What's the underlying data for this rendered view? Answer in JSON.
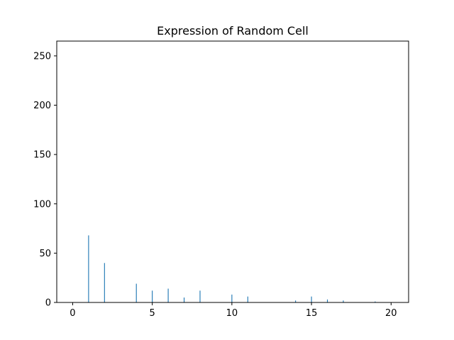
{
  "chart_data": {
    "type": "bar",
    "title": "Expression of Random Cell",
    "xlabel": "",
    "ylabel": "",
    "xlim": [
      -1,
      21.1
    ],
    "ylim": [
      0,
      265
    ],
    "xticks": [
      0,
      5,
      10,
      15,
      20
    ],
    "yticks": [
      0,
      50,
      100,
      150,
      200,
      250
    ],
    "grid": false,
    "bar_color": "#1f77b4",
    "bar_width": 0.05,
    "x": [
      1,
      2,
      4,
      5,
      6,
      7,
      8,
      10,
      11,
      14,
      15,
      16,
      17,
      19
    ],
    "values": [
      68,
      40,
      19,
      12,
      14,
      5,
      12,
      8,
      6,
      2,
      6,
      3,
      2,
      1
    ]
  }
}
